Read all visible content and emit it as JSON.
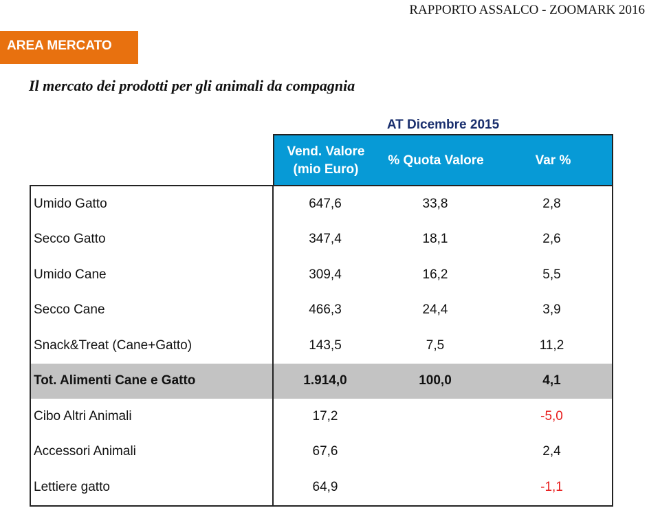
{
  "header": {
    "report": "RAPPORTO ASSALCO - ZOOMARK 2016",
    "section": "AREA MERCATO",
    "title": "Il mercato dei prodotti per  gli animali da compagnia"
  },
  "colors": {
    "section_bg": "#e8710f",
    "table_header_bg": "#079ad6",
    "total_row_bg": "#c3c3c3",
    "negative": "#e81b1b",
    "period_text": "#1a2f6e"
  },
  "table": {
    "period": "AT Dicembre 2015",
    "columns": [
      "Vend. Valore (mio Euro)",
      "% Quota Valore",
      "Var %"
    ],
    "rows": [
      {
        "label": "Umido Gatto",
        "value": "647,6",
        "share": "33,8",
        "var": "2,8"
      },
      {
        "label": "Secco Gatto",
        "value": "347,4",
        "share": "18,1",
        "var": "2,6"
      },
      {
        "label": "Umido Cane",
        "value": "309,4",
        "share": "16,2",
        "var": "5,5"
      },
      {
        "label": "Secco Cane",
        "value": "466,3",
        "share": "24,4",
        "var": "3,9"
      },
      {
        "label": "Snack&Treat (Cane+Gatto)",
        "value": "143,5",
        "share": "7,5",
        "var": "11,2"
      },
      {
        "label": "Tot. Alimenti Cane e Gatto",
        "value": "1.914,0",
        "share": "100,0",
        "var": "4,1"
      },
      {
        "label": "Cibo Altri Animali",
        "value": "17,2",
        "share": "",
        "var": "-5,0"
      },
      {
        "label": "Accessori Animali",
        "value": "67,6",
        "share": "",
        "var": "2,4"
      },
      {
        "label": "Lettiere gatto",
        "value": "64,9",
        "share": "",
        "var": "-1,1"
      }
    ]
  }
}
